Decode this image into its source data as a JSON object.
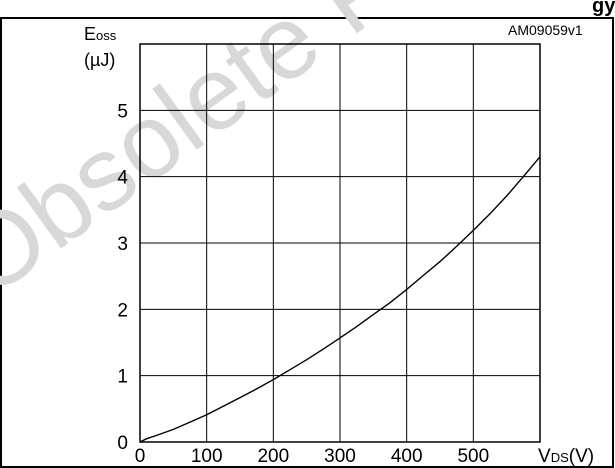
{
  "header": {
    "partial_title": "gy"
  },
  "watermark": "Obsolete Product(s)",
  "figure_code": "AM09059v1",
  "chart_data": {
    "type": "line",
    "title": "",
    "ylabel": {
      "main": "E",
      "sub": "oss",
      "unit": "(µJ)"
    },
    "xlabel": {
      "main": "V",
      "sub": "DS",
      "unit": "(V)"
    },
    "xlim": [
      0,
      600
    ],
    "ylim": [
      0,
      6
    ],
    "xticks": [
      "0",
      "100",
      "200",
      "300",
      "400",
      "500"
    ],
    "yticks": [
      "0",
      "1",
      "2",
      "3",
      "4",
      "5"
    ],
    "grid": true,
    "series": [
      {
        "x": [
          0,
          10,
          25,
          50,
          75,
          100,
          125,
          150,
          175,
          200,
          225,
          250,
          275,
          300,
          325,
          350,
          375,
          400,
          425,
          450,
          475,
          500,
          525,
          550,
          575,
          600
        ],
        "y": [
          0,
          0.05,
          0.1,
          0.19,
          0.3,
          0.41,
          0.54,
          0.67,
          0.8,
          0.94,
          1.09,
          1.24,
          1.4,
          1.57,
          1.74,
          1.92,
          2.1,
          2.3,
          2.51,
          2.72,
          2.95,
          3.19,
          3.44,
          3.71,
          4.0,
          4.3
        ]
      }
    ]
  }
}
